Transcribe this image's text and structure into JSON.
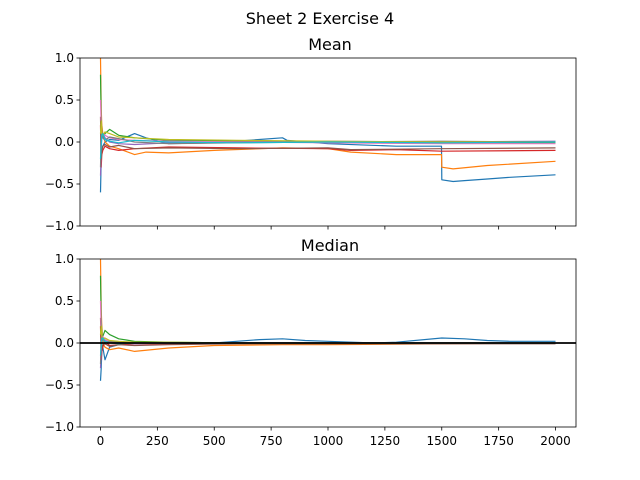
{
  "figure_title": "Sheet 2 Exercise 4",
  "chart_data": [
    {
      "type": "line",
      "title": "Mean",
      "xlim": [
        -90,
        2090
      ],
      "ylim": [
        -1.0,
        1.0
      ],
      "x_ticks": [
        0,
        250,
        500,
        750,
        1000,
        1250,
        1500,
        1750,
        2000
      ],
      "y_ticks": [
        -1.0,
        -0.5,
        0.0,
        0.5,
        1.0
      ],
      "y_tick_labels": [
        "−1.0",
        "−0.5",
        "0.0",
        "0.5",
        "1.0"
      ],
      "show_x_tick_labels": false,
      "horizontal_line": null,
      "series": [
        {
          "color": "#1f77b4",
          "x": [
            0,
            3,
            6,
            10,
            20,
            40,
            80,
            150,
            200,
            300,
            500,
            800,
            820,
            1000,
            1300,
            1499,
            1500,
            1550,
            1600,
            1700,
            1800,
            2000
          ],
          "y": [
            -0.6,
            -0.2,
            -0.1,
            -0.05,
            0.0,
            0.03,
            0.02,
            0.1,
            0.05,
            -0.02,
            -0.01,
            0.05,
            0.02,
            -0.02,
            -0.05,
            -0.05,
            -0.45,
            -0.47,
            -0.46,
            -0.44,
            -0.42,
            -0.39
          ]
        },
        {
          "color": "#ff7f0e",
          "x": [
            0,
            3,
            6,
            10,
            20,
            40,
            80,
            150,
            200,
            300,
            500,
            800,
            1000,
            1100,
            1300,
            1499,
            1500,
            1550,
            1700,
            2000
          ],
          "y": [
            1.0,
            0.4,
            0.2,
            0.1,
            0.0,
            -0.05,
            -0.08,
            -0.15,
            -0.12,
            -0.13,
            -0.1,
            -0.07,
            -0.08,
            -0.12,
            -0.15,
            -0.15,
            -0.3,
            -0.32,
            -0.28,
            -0.23
          ]
        },
        {
          "color": "#2ca02c",
          "x": [
            0,
            3,
            6,
            10,
            20,
            40,
            80,
            150,
            300,
            600,
            1000,
            1500,
            2000
          ],
          "y": [
            0.8,
            0.3,
            0.1,
            0.05,
            0.1,
            0.15,
            0.08,
            0.05,
            0.02,
            0.01,
            0.0,
            -0.01,
            -0.01
          ]
        },
        {
          "color": "#d62728",
          "x": [
            0,
            3,
            6,
            10,
            20,
            40,
            80,
            150,
            300,
            600,
            1000,
            1100,
            1300,
            1500,
            2000
          ],
          "y": [
            0.2,
            -0.3,
            -0.15,
            -0.1,
            -0.05,
            -0.08,
            -0.1,
            -0.08,
            -0.06,
            -0.07,
            -0.08,
            -0.1,
            -0.09,
            -0.11,
            -0.1
          ]
        },
        {
          "color": "#9467bd",
          "x": [
            0,
            3,
            6,
            10,
            20,
            40,
            80,
            150,
            300,
            600,
            1000,
            1500,
            2000
          ],
          "y": [
            -0.4,
            -0.1,
            0.05,
            0.1,
            0.05,
            0.0,
            -0.02,
            -0.03,
            -0.01,
            0.0,
            0.01,
            0.0,
            0.01
          ]
        },
        {
          "color": "#8c564b",
          "x": [
            0,
            3,
            6,
            10,
            20,
            40,
            80,
            150,
            300,
            600,
            1000,
            1100,
            1500,
            2000
          ],
          "y": [
            0.3,
            -0.2,
            -0.1,
            -0.05,
            -0.03,
            -0.06,
            -0.04,
            -0.08,
            -0.07,
            -0.08,
            -0.07,
            -0.09,
            -0.08,
            -0.07
          ]
        },
        {
          "color": "#e377c2",
          "x": [
            0,
            3,
            6,
            10,
            20,
            40,
            80,
            150,
            300,
            600,
            1000,
            1500,
            2000
          ],
          "y": [
            0.5,
            0.2,
            0.05,
            0.1,
            0.08,
            0.05,
            0.03,
            0.02,
            0.01,
            0.0,
            -0.01,
            -0.02,
            -0.02
          ]
        },
        {
          "color": "#7f7f7f",
          "x": [
            0,
            3,
            6,
            10,
            20,
            40,
            80,
            150,
            300,
            600,
            1000,
            1500,
            2000
          ],
          "y": [
            -0.3,
            0.1,
            0.15,
            0.05,
            0.02,
            0.06,
            0.04,
            0.0,
            -0.02,
            -0.01,
            0.0,
            0.01,
            0.0
          ]
        },
        {
          "color": "#bcbd22",
          "x": [
            0,
            3,
            6,
            10,
            20,
            40,
            80,
            150,
            300,
            600,
            1000,
            1500,
            2000
          ],
          "y": [
            0.1,
            0.25,
            0.1,
            0.08,
            0.12,
            0.1,
            0.06,
            0.05,
            0.03,
            0.02,
            0.01,
            0.0,
            0.0
          ]
        },
        {
          "color": "#17becf",
          "x": [
            0,
            3,
            6,
            10,
            20,
            40,
            80,
            150,
            300,
            600,
            1000,
            1500,
            2000
          ],
          "y": [
            -0.2,
            -0.05,
            0.08,
            0.1,
            0.03,
            0.01,
            -0.01,
            0.02,
            0.0,
            -0.01,
            0.0,
            -0.01,
            0.0
          ]
        }
      ]
    },
    {
      "type": "line",
      "title": "Median",
      "xlim": [
        -90,
        2090
      ],
      "ylim": [
        -1.0,
        1.0
      ],
      "x_ticks": [
        0,
        250,
        500,
        750,
        1000,
        1250,
        1500,
        1750,
        2000
      ],
      "x_tick_labels": [
        "0",
        "250",
        "500",
        "750",
        "1000",
        "1250",
        "1500",
        "1750",
        "2000"
      ],
      "y_ticks": [
        -1.0,
        -0.5,
        0.0,
        0.5,
        1.0
      ],
      "y_tick_labels": [
        "−1.0",
        "−0.5",
        "0.0",
        "0.5",
        "1.0"
      ],
      "show_x_tick_labels": true,
      "horizontal_line": 0.0,
      "series": [
        {
          "color": "#1f77b4",
          "x": [
            0,
            3,
            6,
            10,
            20,
            40,
            80,
            150,
            300,
            500,
            700,
            800,
            900,
            1000,
            1200,
            1300,
            1500,
            1600,
            1700,
            1800,
            2000
          ],
          "y": [
            -0.45,
            -0.3,
            -0.1,
            -0.05,
            -0.2,
            -0.05,
            -0.02,
            0.0,
            -0.01,
            0.0,
            0.04,
            0.05,
            0.03,
            0.02,
            0.0,
            0.01,
            0.06,
            0.05,
            0.03,
            0.02,
            0.02
          ]
        },
        {
          "color": "#ff7f0e",
          "x": [
            0,
            3,
            6,
            10,
            20,
            40,
            80,
            150,
            300,
            500,
            800,
            1000,
            1500,
            2000
          ],
          "y": [
            1.0,
            0.4,
            0.2,
            0.0,
            -0.05,
            -0.08,
            -0.06,
            -0.1,
            -0.06,
            -0.03,
            -0.02,
            -0.02,
            -0.01,
            0.0
          ]
        },
        {
          "color": "#2ca02c",
          "x": [
            0,
            3,
            6,
            10,
            20,
            40,
            80,
            150,
            300,
            600,
            1000,
            1500,
            2000
          ],
          "y": [
            0.8,
            0.3,
            0.1,
            0.08,
            0.15,
            0.1,
            0.05,
            0.02,
            0.01,
            0.0,
            0.0,
            0.0,
            0.0
          ]
        },
        {
          "color": "#d62728",
          "x": [
            0,
            3,
            6,
            10,
            20,
            40,
            80,
            150,
            300,
            600,
            1000,
            1500,
            2000
          ],
          "y": [
            0.2,
            -0.2,
            -0.1,
            -0.05,
            0.02,
            -0.03,
            -0.02,
            -0.01,
            -0.01,
            0.0,
            0.0,
            0.0,
            0.0
          ]
        },
        {
          "color": "#9467bd",
          "x": [
            0,
            3,
            6,
            10,
            20,
            40,
            80,
            150,
            300,
            600,
            1000,
            1500,
            2000
          ],
          "y": [
            -0.3,
            -0.1,
            0.05,
            0.05,
            0.03,
            0.01,
            0.0,
            -0.01,
            0.0,
            0.0,
            0.0,
            0.0,
            0.0
          ]
        },
        {
          "color": "#8c564b",
          "x": [
            0,
            3,
            6,
            10,
            20,
            40,
            80,
            150,
            300,
            600,
            1000,
            1500,
            2000
          ],
          "y": [
            0.3,
            0.0,
            -0.05,
            -0.02,
            -0.01,
            -0.04,
            -0.02,
            -0.03,
            -0.02,
            -0.01,
            -0.01,
            -0.01,
            -0.01
          ]
        },
        {
          "color": "#e377c2",
          "x": [
            0,
            3,
            6,
            10,
            20,
            40,
            80,
            150,
            300,
            600,
            1000,
            1500,
            2000
          ],
          "y": [
            0.5,
            0.15,
            0.05,
            0.08,
            0.04,
            0.02,
            0.01,
            0.0,
            0.0,
            0.0,
            0.0,
            0.0,
            0.0
          ]
        },
        {
          "color": "#7f7f7f",
          "x": [
            0,
            3,
            6,
            10,
            20,
            40,
            80,
            150,
            300,
            600,
            1000,
            1500,
            2000
          ],
          "y": [
            -0.25,
            0.05,
            0.1,
            0.03,
            0.01,
            0.02,
            0.01,
            0.0,
            0.0,
            0.0,
            0.0,
            0.0,
            0.0
          ]
        },
        {
          "color": "#bcbd22",
          "x": [
            0,
            3,
            6,
            10,
            20,
            40,
            80,
            150,
            300,
            600,
            1000,
            1500,
            2000
          ],
          "y": [
            0.1,
            0.2,
            0.08,
            0.05,
            0.06,
            0.03,
            0.02,
            0.01,
            0.01,
            0.0,
            0.0,
            0.0,
            0.0
          ]
        },
        {
          "color": "#17becf",
          "x": [
            0,
            3,
            6,
            10,
            20,
            40,
            80,
            150,
            300,
            600,
            1000,
            1500,
            2000
          ],
          "y": [
            -0.15,
            -0.05,
            0.05,
            0.06,
            0.02,
            0.0,
            -0.01,
            0.0,
            0.0,
            0.0,
            0.0,
            0.0,
            0.0
          ]
        }
      ]
    }
  ]
}
